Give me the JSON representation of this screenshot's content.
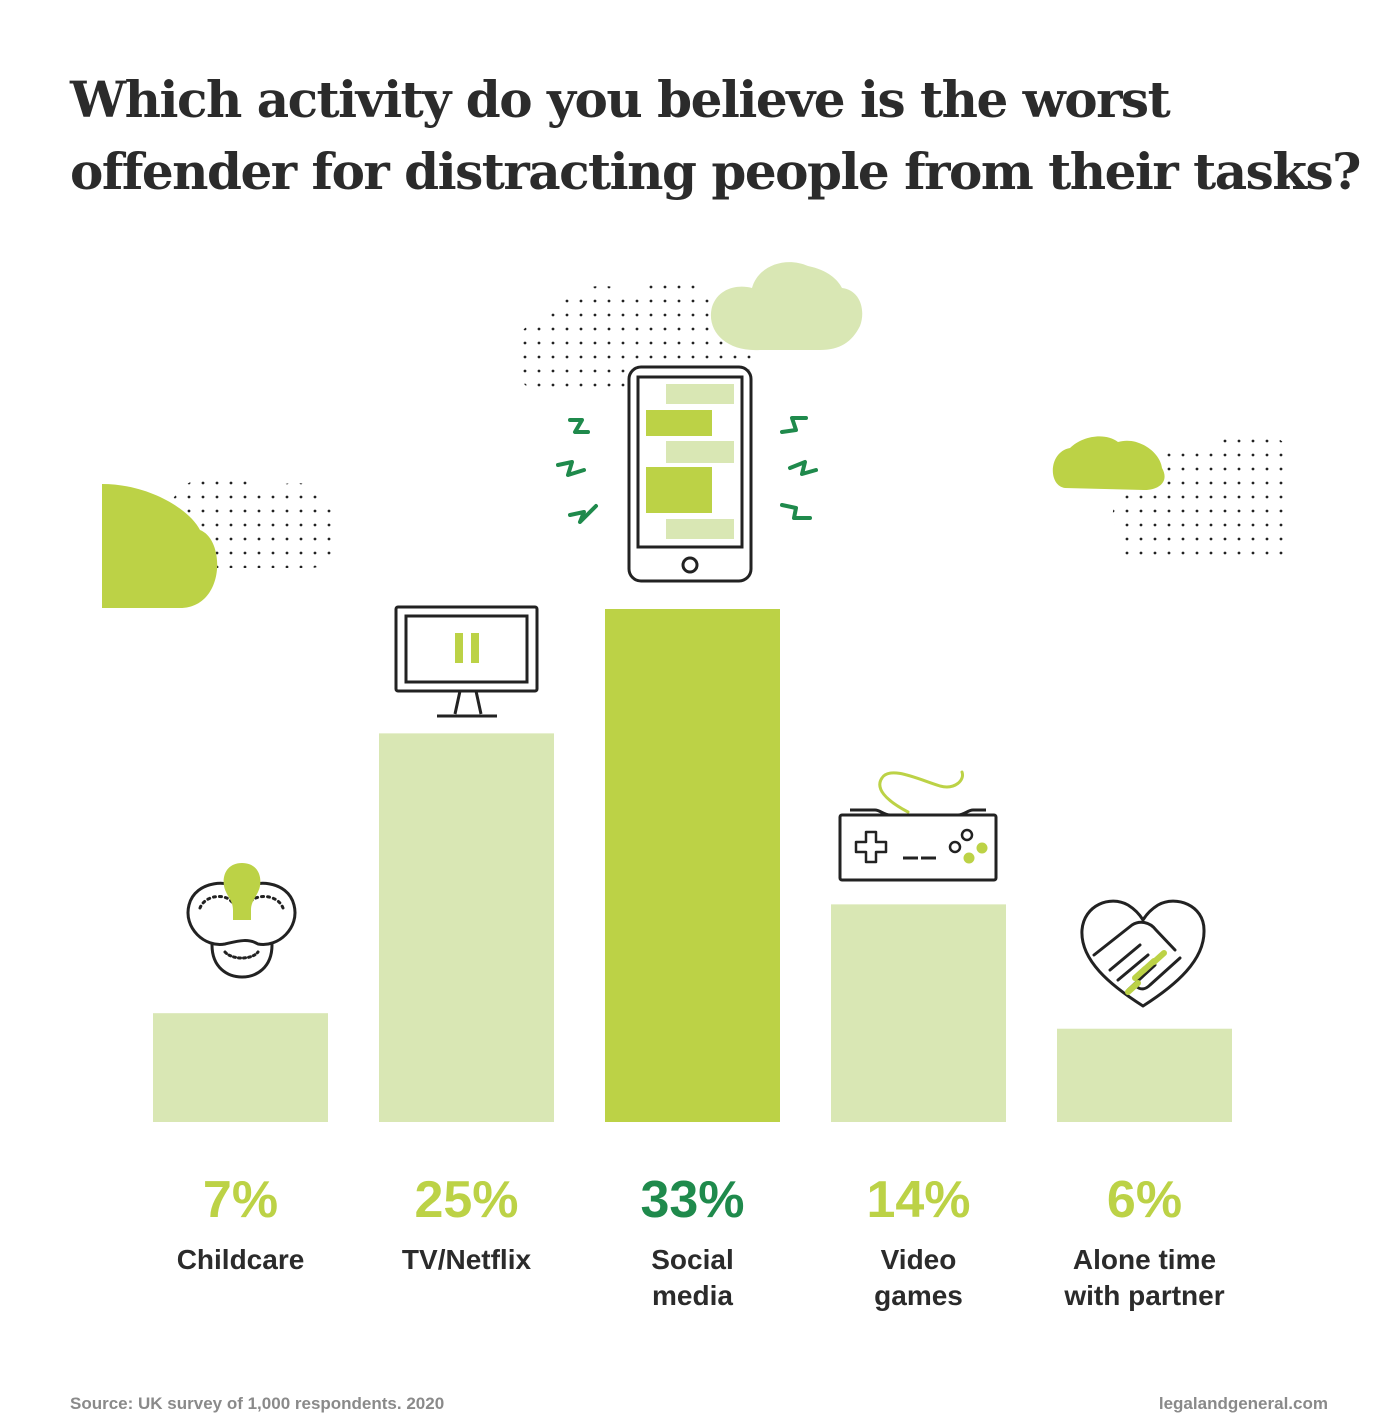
{
  "title_line1": "Which activity do you believe is the worst",
  "title_line2": "offender for distracting people from their tasks?",
  "colors": {
    "bar_light": "#d9e7b4",
    "bar_highlight": "#bcd246",
    "label_light": "#bcd246",
    "label_highlight": "#1f8a4c",
    "text_dark": "#2b2b2b",
    "footer": "#8a8a8a",
    "cloud": "#d9e7b4",
    "cloud_strong": "#bcd246"
  },
  "chart_data": {
    "type": "bar",
    "title": "Which activity do you believe is the worst offender for distracting people from their tasks?",
    "xlabel": "",
    "ylabel": "",
    "ylim": [
      0,
      33
    ],
    "grid": false,
    "legend": "none",
    "unit": "%",
    "categories": [
      "Childcare",
      "TV/Netflix",
      "Social media",
      "Video games",
      "Alone time with partner"
    ],
    "values": [
      7,
      25,
      33,
      14,
      6
    ],
    "value_labels": [
      "7%",
      "25%",
      "33%",
      "14%",
      "6%"
    ],
    "category_lines": [
      [
        "Childcare"
      ],
      [
        "TV/Netflix"
      ],
      [
        "Social",
        "media"
      ],
      [
        "Video",
        "games"
      ],
      [
        "Alone time",
        "with partner"
      ]
    ],
    "highlight_index": 2,
    "icons": [
      "pacifier-icon",
      "tv-icon",
      "smartphone-icon",
      "game-controller-icon",
      "handshake-heart-icon"
    ]
  },
  "footer": {
    "source": "Source: UK survey of 1,000 respondents. 2020",
    "site": "legalandgeneral.com"
  }
}
